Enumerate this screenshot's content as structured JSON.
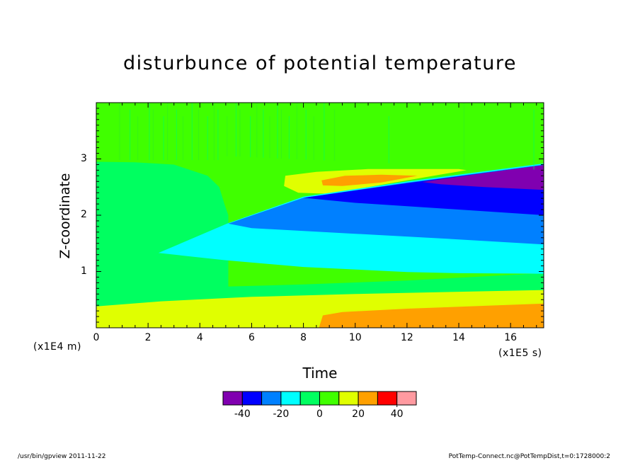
{
  "chart_data": {
    "type": "heatmap",
    "title": "disturbunce of potential temperature",
    "xlabel": "Time",
    "ylabel": "Z-coordinate",
    "x_units_label": "(x1E5 s)",
    "y_units_label": "(x1E4 m)",
    "xlim": [
      0,
      17.28
    ],
    "ylim": [
      0,
      4.0
    ],
    "x_ticks": [
      "0",
      "2",
      "4",
      "6",
      "8",
      "10",
      "12",
      "14",
      "16"
    ],
    "y_ticks": [
      "1",
      "2",
      "3"
    ],
    "colorbar": {
      "levels": [
        -50,
        -40,
        -30,
        -20,
        -10,
        0,
        10,
        20,
        30,
        40,
        50
      ],
      "tick_labels": [
        "-40",
        "-20",
        "0",
        "20",
        "40"
      ],
      "colors": [
        "#8000b0",
        "#0000ff",
        "#0080ff",
        "#00ffff",
        "#00ff60",
        "#40ff00",
        "#e0ff00",
        "#ffa000",
        "#ff0000",
        "#ff9aa0"
      ]
    },
    "regions": [
      {
        "bin": "0 to 10",
        "color": "#40ff00",
        "description": "upper layer above inversion"
      },
      {
        "bin": "-10 to 0",
        "color": "#00ff60",
        "description": "lower boundary layer and z < 3 at early time"
      },
      {
        "bin": "10 to 20",
        "color": "#e0ff00",
        "description": "near-surface warming after t=2.5E5 s; thin band near z=2.7 at t=7-14"
      },
      {
        "bin": "20 to 30",
        "color": "#ffa000",
        "description": "surface layer after t=8.7E5 s; thin lens near z=2.6 at t=9-12"
      },
      {
        "bin": "-20 to -10",
        "color": "#00ffff",
        "description": "cooling wedge z=0.9-1.8 from t=2.4E5 s"
      },
      {
        "bin": "-30 to -20",
        "color": "#0080ff",
        "description": "band z=1.5-2.4 from t=5E5 s"
      },
      {
        "bin": "-40 to -30",
        "color": "#0000ff",
        "description": "band z=2.0-2.6 from t=8E5 s"
      },
      {
        "bin": "-50 to -40",
        "color": "#8000b0",
        "description": "top band z=2.45-2.9 from t=12.5E5 s"
      }
    ]
  },
  "footer": {
    "left": "/usr/bin/gpview   2011-11-22",
    "right": "PotTemp-Connect.nc@PotTempDist,t=0:1728000:2"
  }
}
